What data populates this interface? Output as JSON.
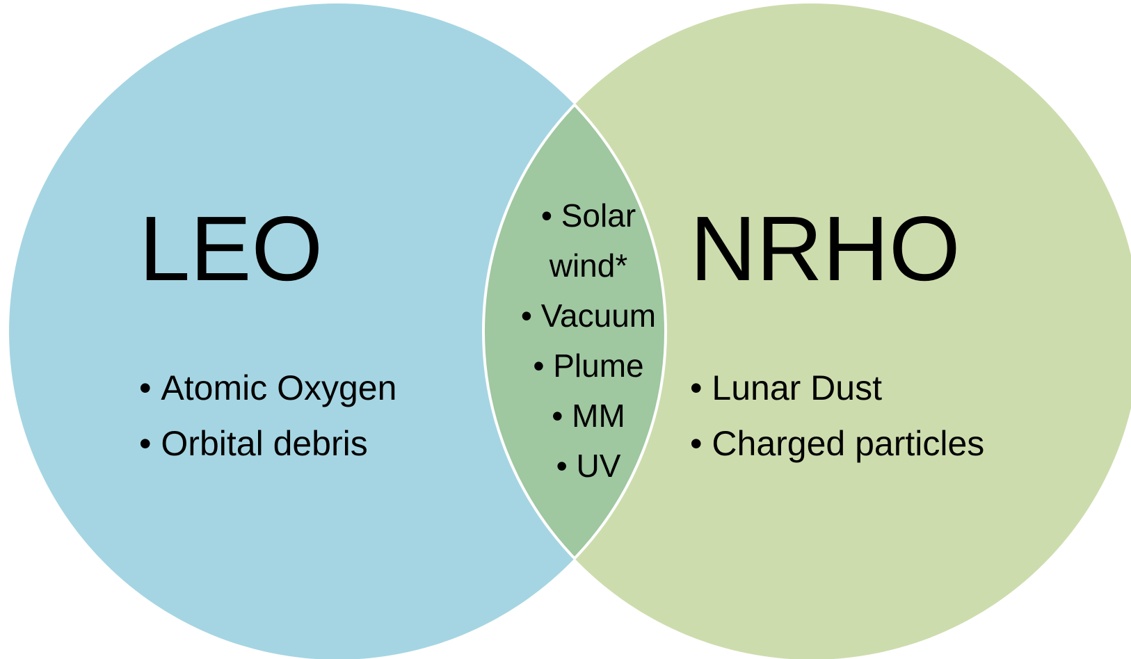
{
  "left": {
    "label": "LEO",
    "items": [
      "Atomic Oxygen",
      "Orbital debris"
    ]
  },
  "right": {
    "label": "NRHO",
    "items": [
      "Lunar Dust",
      "Charged particles"
    ]
  },
  "overlap": {
    "items": [
      "Solar wind*",
      "Vacuum",
      "Plume",
      "MM",
      "UV"
    ]
  }
}
